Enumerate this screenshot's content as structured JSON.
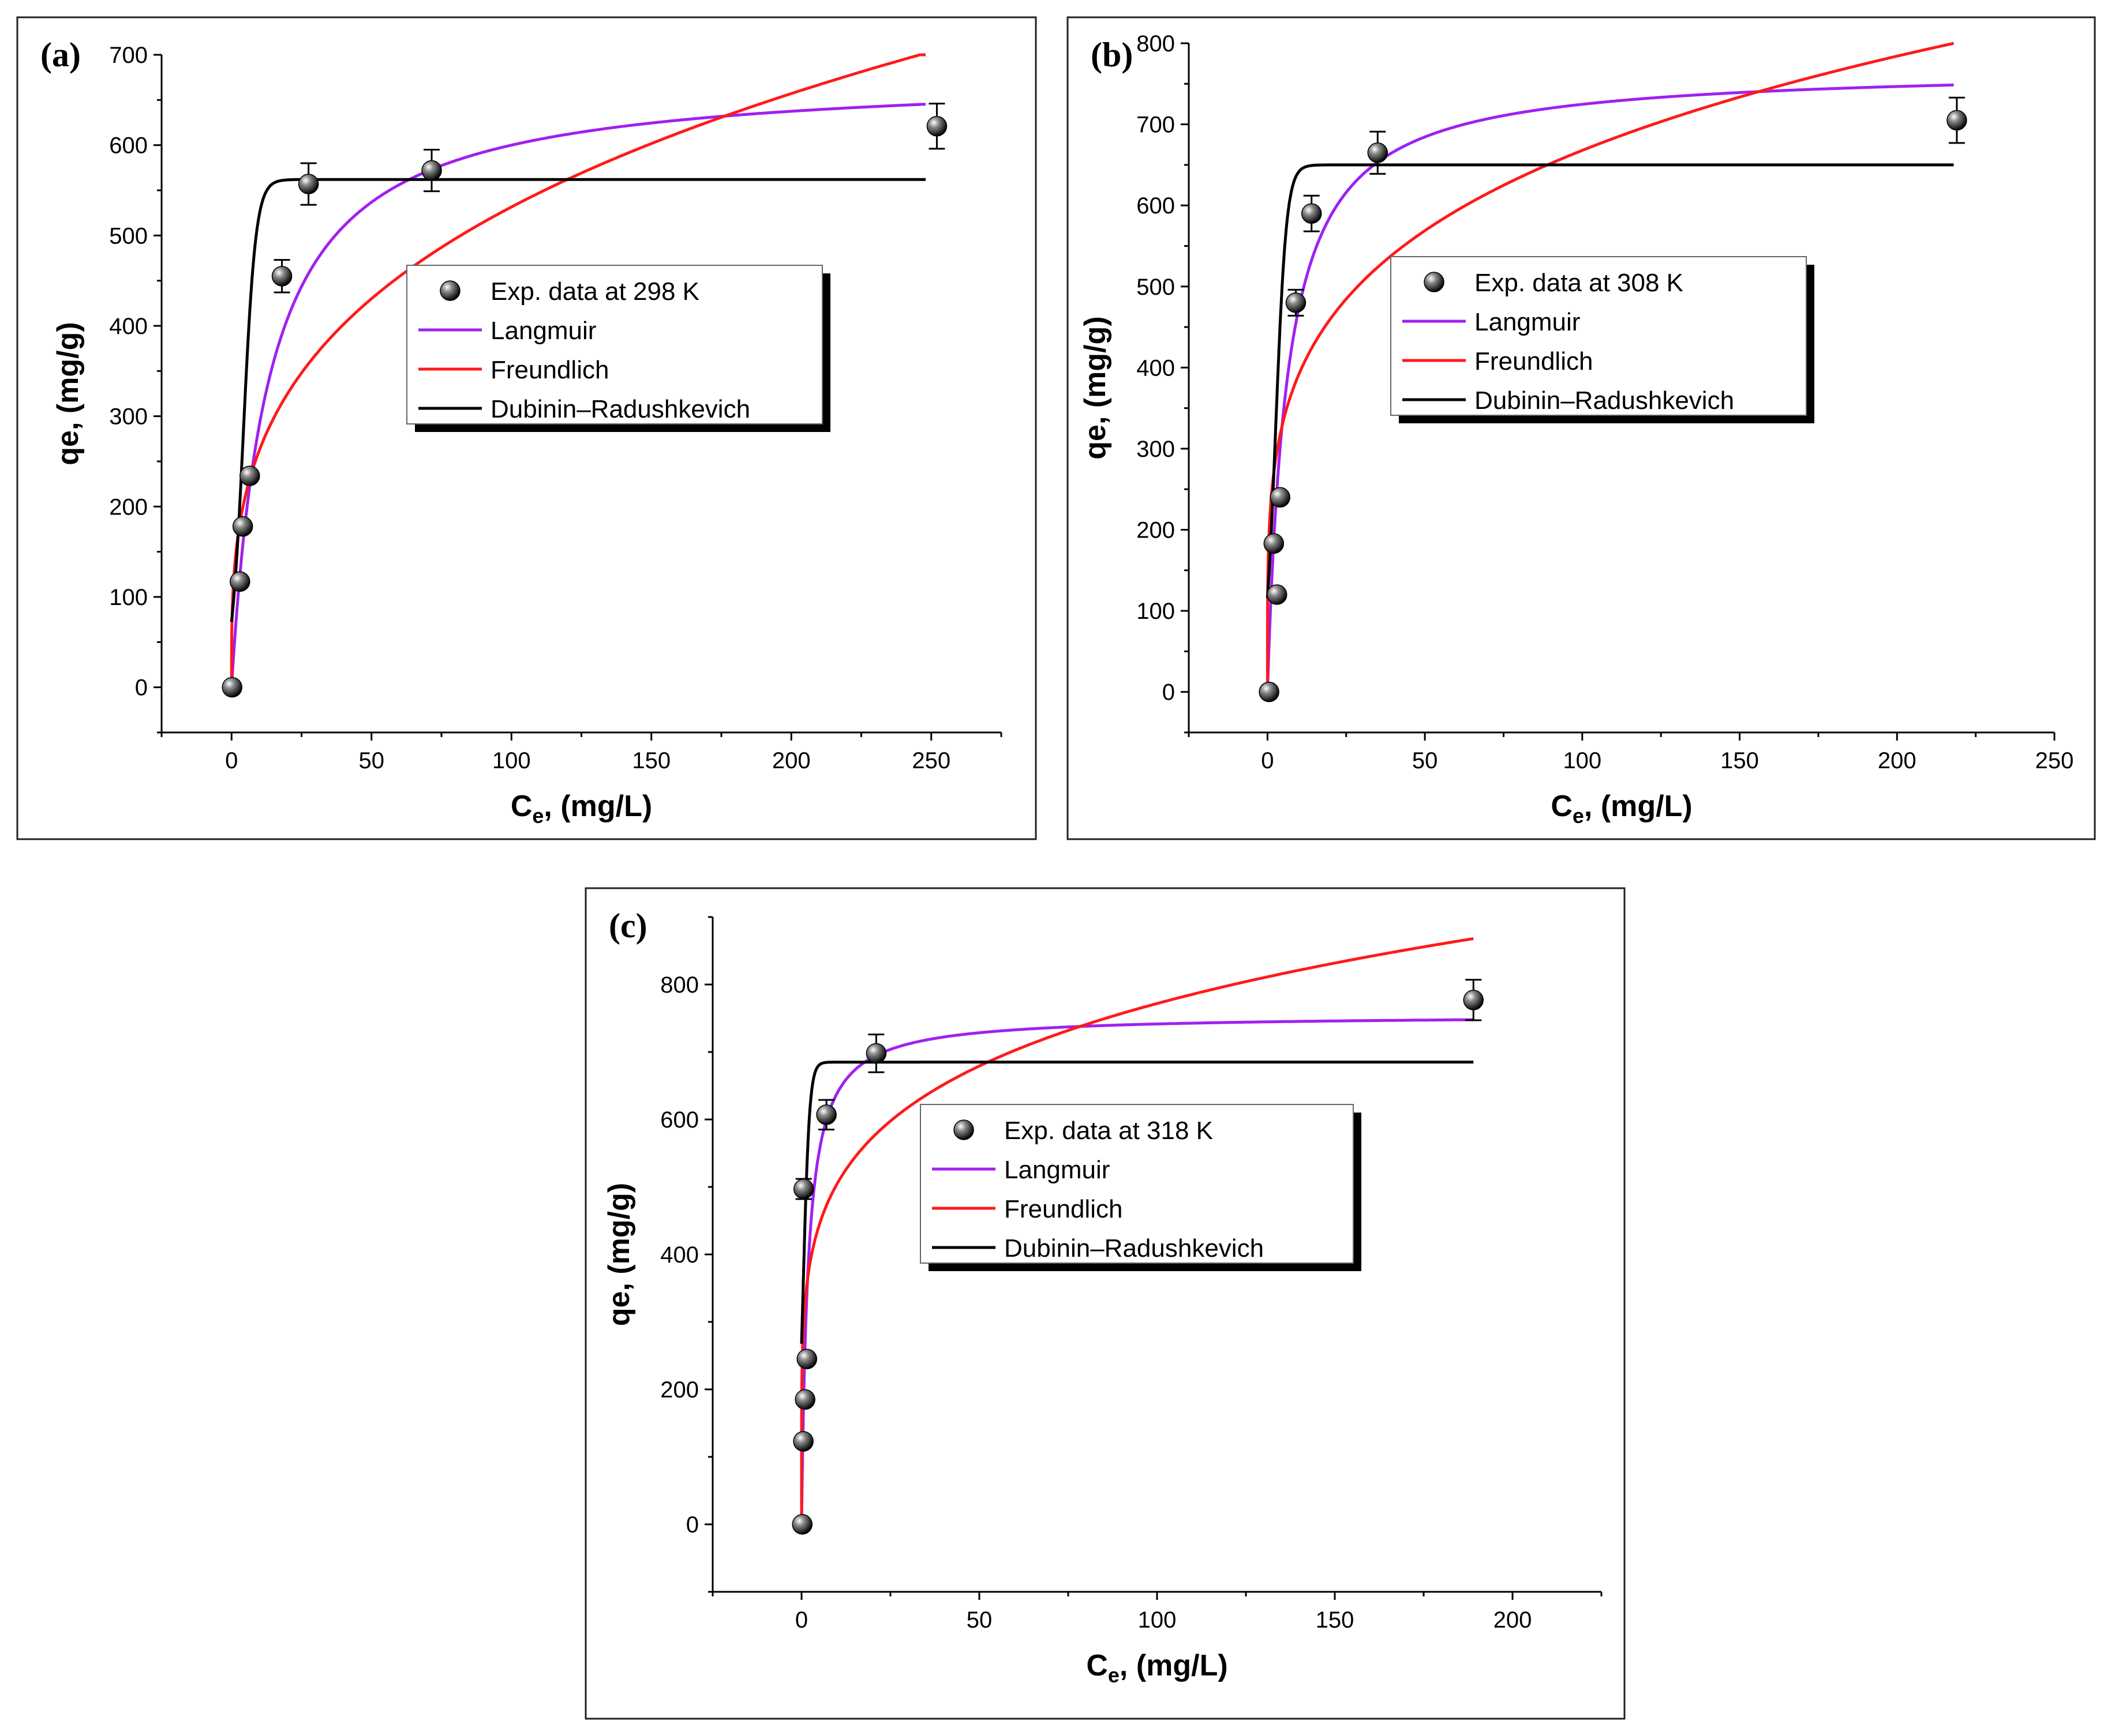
{
  "chart_data": [
    {
      "type": "scatter",
      "panel_label": "(a)",
      "xlabel_main": "C",
      "xlabel_sub": "e",
      "xlabel_rest": ", (mg/L)",
      "ylabel": "qe, (mg/g)",
      "xlim": [
        -25,
        275
      ],
      "ylim": [
        -50,
        700
      ],
      "xticks": [
        0,
        50,
        100,
        150,
        200,
        250
      ],
      "yticks": [
        0,
        100,
        200,
        300,
        400,
        500,
        600,
        700
      ],
      "x_end": 248,
      "legend_position": "center",
      "exp_data": {
        "name": "Exp. data at 298 K",
        "x": [
          0.2,
          3,
          4,
          6.5,
          18,
          27.5,
          71.5,
          252
        ],
        "y": [
          0,
          117,
          178,
          234,
          455,
          557,
          572,
          621
        ],
        "err": [
          0,
          0,
          0,
          0,
          18,
          23,
          23,
          25
        ]
      },
      "models": [
        {
          "name": "Langmuir",
          "color": "#a020f0",
          "kind": "langmuir",
          "params": {
            "qm": 680,
            "KL": 0.075
          }
        },
        {
          "name": "Freundlich",
          "color": "#ff1a1a",
          "kind": "freundlich",
          "params": {
            "KF": 130,
            "n": 3.27
          }
        },
        {
          "name": "Dubinin–Radushkevich",
          "color": "#000000",
          "kind": "dr",
          "params": {
            "qm": 562,
            "x0": 4.2,
            "w": 2.2
          }
        }
      ]
    },
    {
      "type": "scatter",
      "panel_label": "(b)",
      "xlabel_main": "C",
      "xlabel_sub": "e",
      "xlabel_rest": ", (mg/L)",
      "ylabel": "qe, (mg/g)",
      "xlim": [
        -25,
        250
      ],
      "ylim": [
        -50,
        800
      ],
      "xticks": [
        0,
        50,
        100,
        150,
        200,
        250
      ],
      "yticks": [
        0,
        100,
        200,
        300,
        400,
        500,
        600,
        700,
        800
      ],
      "x_end": 218,
      "legend_position": "center-right",
      "exp_data": {
        "name": "Exp. data at 308 K",
        "x": [
          0.5,
          2,
          3,
          4,
          9,
          14,
          35,
          219
        ],
        "y": [
          0,
          183,
          120,
          240,
          480,
          590,
          665,
          705
        ],
        "err": [
          0,
          0,
          0,
          0,
          16,
          22,
          26,
          28
        ]
      },
      "models": [
        {
          "name": "Langmuir",
          "color": "#a020f0",
          "kind": "langmuir",
          "params": {
            "qm": 770,
            "KL": 0.16
          }
        },
        {
          "name": "Freundlich",
          "color": "#ff1a1a",
          "kind": "freundlich",
          "params": {
            "KF": 230,
            "n": 4.32
          }
        },
        {
          "name": "Dubinin–Radushkevich",
          "color": "#000000",
          "kind": "dr",
          "params": {
            "qm": 650,
            "x0": 2.6,
            "w": 1.7
          }
        }
      ]
    },
    {
      "type": "scatter",
      "panel_label": "(c)",
      "xlabel_main": "C",
      "xlabel_sub": "e",
      "xlabel_rest": ", (mg/L)",
      "ylabel": "qe, (mg/g)",
      "xlim": [
        -25,
        225
      ],
      "ylim": [
        -100,
        900
      ],
      "xticks": [
        0,
        50,
        100,
        150,
        200
      ],
      "yticks": [
        0,
        200,
        400,
        600,
        800
      ],
      "x_end": 189,
      "legend_position": "center",
      "exp_data": {
        "name": "Exp. data at 318 K",
        "x": [
          0.2,
          0.5,
          1,
          1.5,
          0.6,
          7,
          21,
          189
        ],
        "y": [
          0,
          123,
          185,
          245,
          497,
          607,
          698,
          777
        ],
        "err": [
          0,
          0,
          0,
          0,
          15,
          22,
          28,
          30
        ]
      },
      "models": [
        {
          "name": "Langmuir",
          "color": "#a020f0",
          "kind": "langmuir",
          "params": {
            "qm": 755,
            "KL": 0.55
          }
        },
        {
          "name": "Freundlich",
          "color": "#ff1a1a",
          "kind": "freundlich",
          "params": {
            "KF": 330,
            "n": 5.42
          }
        },
        {
          "name": "Dubinin–Radushkevich",
          "color": "#000000",
          "kind": "dr",
          "params": {
            "qm": 685,
            "x0": 0.4,
            "w": 0.9
          }
        }
      ]
    }
  ]
}
